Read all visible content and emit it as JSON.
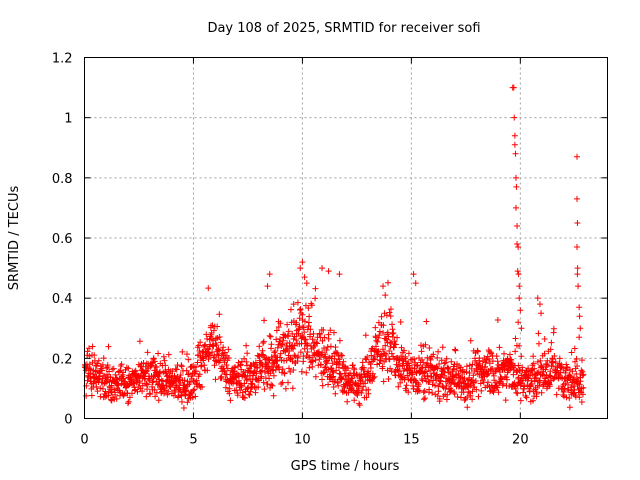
{
  "chart_data": {
    "type": "scatter",
    "title": "Day 108 of 2025, SRMTID for receiver sofi",
    "xlabel": "GPS time / hours",
    "ylabel": "SRMTID / TECUs",
    "xlim": [
      0,
      24
    ],
    "ylim": [
      0,
      1.2
    ],
    "xticks": [
      0,
      5,
      10,
      15,
      20
    ],
    "xtick_labels": [
      "0",
      "5",
      "10",
      "15",
      "20"
    ],
    "yticks": [
      0,
      0.2,
      0.4,
      0.6,
      0.8,
      1.0,
      1.2
    ],
    "ytick_labels": [
      "0",
      "0.2",
      "0.4",
      "0.6",
      "0.8",
      "1",
      "1.2"
    ],
    "grid": true,
    "marker": "+",
    "series": [
      {
        "name": "sofi",
        "color": "#ff0000",
        "profile": {
          "x": [
            0.0,
            0.3,
            0.6,
            1.0,
            1.5,
            2.0,
            2.5,
            3.0,
            3.5,
            4.0,
            4.5,
            5.0,
            5.5,
            5.8,
            6.2,
            6.6,
            7.0,
            7.5,
            8.0,
            8.5,
            9.0,
            9.5,
            10.0,
            10.5,
            11.0,
            11.5,
            12.0,
            12.5,
            13.0,
            13.5,
            14.0,
            14.5,
            15.0,
            15.5,
            16.0,
            16.5,
            17.0,
            17.5,
            18.0,
            18.5,
            19.0,
            19.5,
            20.0,
            20.5,
            21.0,
            21.5,
            22.0,
            22.5,
            22.9
          ],
          "center": [
            0.16,
            0.14,
            0.14,
            0.13,
            0.12,
            0.11,
            0.13,
            0.14,
            0.13,
            0.12,
            0.11,
            0.13,
            0.2,
            0.26,
            0.21,
            0.14,
            0.13,
            0.14,
            0.15,
            0.19,
            0.22,
            0.2,
            0.3,
            0.23,
            0.2,
            0.19,
            0.13,
            0.11,
            0.14,
            0.24,
            0.25,
            0.17,
            0.13,
            0.15,
            0.15,
            0.13,
            0.13,
            0.12,
            0.14,
            0.17,
            0.14,
            0.16,
            0.13,
            0.12,
            0.15,
            0.16,
            0.13,
            0.12,
            0.13
          ],
          "spread": [
            0.08,
            0.07,
            0.07,
            0.07,
            0.06,
            0.06,
            0.06,
            0.07,
            0.07,
            0.06,
            0.06,
            0.07,
            0.09,
            0.11,
            0.1,
            0.07,
            0.07,
            0.07,
            0.08,
            0.11,
            0.11,
            0.1,
            0.13,
            0.11,
            0.11,
            0.11,
            0.07,
            0.06,
            0.08,
            0.1,
            0.1,
            0.09,
            0.07,
            0.08,
            0.08,
            0.07,
            0.07,
            0.07,
            0.08,
            0.09,
            0.08,
            0.09,
            0.07,
            0.07,
            0.08,
            0.08,
            0.07,
            0.07,
            0.07
          ]
        },
        "spikes": [
          {
            "x": 8.5,
            "y": 0.48
          },
          {
            "x": 8.4,
            "y": 0.44
          },
          {
            "x": 9.6,
            "y": 0.38
          },
          {
            "x": 9.9,
            "y": 0.5
          },
          {
            "x": 10.0,
            "y": 0.52
          },
          {
            "x": 10.1,
            "y": 0.47
          },
          {
            "x": 10.2,
            "y": 0.45
          },
          {
            "x": 10.9,
            "y": 0.5
          },
          {
            "x": 11.2,
            "y": 0.49
          },
          {
            "x": 11.7,
            "y": 0.48
          },
          {
            "x": 13.7,
            "y": 0.44
          },
          {
            "x": 13.8,
            "y": 0.41
          },
          {
            "x": 15.1,
            "y": 0.48
          },
          {
            "x": 15.2,
            "y": 0.45
          },
          {
            "x": 19.65,
            "y": 1.1
          },
          {
            "x": 19.7,
            "y": 1.1
          },
          {
            "x": 19.72,
            "y": 1.0
          },
          {
            "x": 19.75,
            "y": 0.94
          },
          {
            "x": 19.75,
            "y": 0.91
          },
          {
            "x": 19.78,
            "y": 0.88
          },
          {
            "x": 19.8,
            "y": 0.8
          },
          {
            "x": 19.82,
            "y": 0.77
          },
          {
            "x": 19.8,
            "y": 0.7
          },
          {
            "x": 19.85,
            "y": 0.64
          },
          {
            "x": 19.85,
            "y": 0.58
          },
          {
            "x": 19.9,
            "y": 0.57
          },
          {
            "x": 19.88,
            "y": 0.49
          },
          {
            "x": 19.92,
            "y": 0.48
          },
          {
            "x": 19.95,
            "y": 0.44
          },
          {
            "x": 19.95,
            "y": 0.4
          },
          {
            "x": 20.0,
            "y": 0.36
          },
          {
            "x": 19.9,
            "y": 0.32
          },
          {
            "x": 20.05,
            "y": 0.3
          },
          {
            "x": 20.8,
            "y": 0.4
          },
          {
            "x": 20.9,
            "y": 0.38
          },
          {
            "x": 20.95,
            "y": 0.35
          },
          {
            "x": 22.6,
            "y": 0.87
          },
          {
            "x": 22.6,
            "y": 0.73
          },
          {
            "x": 22.62,
            "y": 0.65
          },
          {
            "x": 22.6,
            "y": 0.57
          },
          {
            "x": 22.63,
            "y": 0.5
          },
          {
            "x": 22.62,
            "y": 0.48
          },
          {
            "x": 22.65,
            "y": 0.44
          },
          {
            "x": 22.7,
            "y": 0.37
          },
          {
            "x": 22.72,
            "y": 0.34
          },
          {
            "x": 22.75,
            "y": 0.3
          },
          {
            "x": 22.7,
            "y": 0.27
          }
        ]
      }
    ]
  }
}
